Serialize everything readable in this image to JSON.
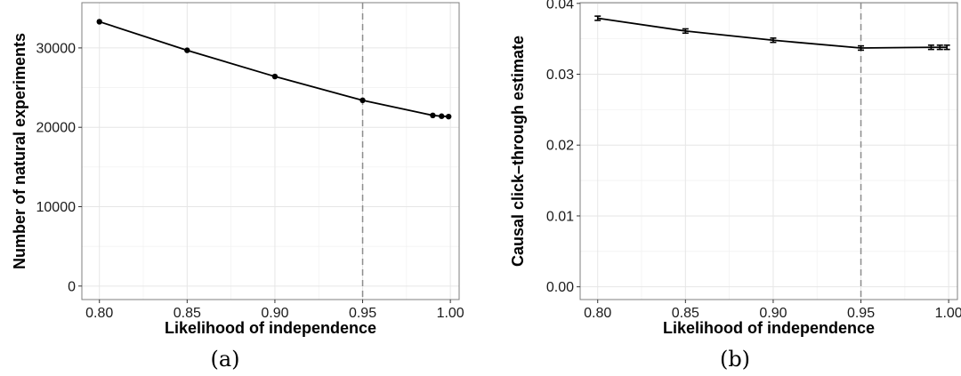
{
  "chart_data": [
    {
      "type": "line",
      "caption": "(a)",
      "xlabel": "Likelihood of independence",
      "ylabel": "Number of natural experiments",
      "xlim": [
        0.79,
        1.005
      ],
      "ylim": [
        -1700,
        35700
      ],
      "x_ticks": [
        0.8,
        0.85,
        0.9,
        0.95,
        1.0
      ],
      "x_tick_labels": [
        "0.80",
        "0.85",
        "0.90",
        "0.95",
        "1.00"
      ],
      "y_ticks": [
        0,
        10000,
        20000,
        30000
      ],
      "y_tick_labels": [
        "0",
        "10000",
        "20000",
        "30000"
      ],
      "grid": true,
      "reference_line_x": 0.95,
      "series": [
        {
          "x": [
            0.8,
            0.85,
            0.9,
            0.95,
            0.99,
            0.995,
            0.999
          ],
          "y": [
            33300,
            29700,
            26400,
            23400,
            21500,
            21400,
            21350
          ]
        }
      ]
    },
    {
      "type": "line",
      "caption": "(b)",
      "xlabel": "Likelihood of independence",
      "ylabel": "Causal click–through estimate",
      "xlim": [
        0.79,
        1.005
      ],
      "ylim": [
        -0.0018,
        0.0401
      ],
      "x_ticks": [
        0.8,
        0.85,
        0.9,
        0.95,
        1.0
      ],
      "x_tick_labels": [
        "0.80",
        "0.85",
        "0.90",
        "0.95",
        "1.00"
      ],
      "y_ticks": [
        0.0,
        0.01,
        0.02,
        0.03,
        0.04
      ],
      "y_tick_labels": [
        "0.00",
        "0.01",
        "0.02",
        "0.03",
        "0.04"
      ],
      "grid": true,
      "reference_line_x": 0.95,
      "error_bars": true,
      "series": [
        {
          "x": [
            0.8,
            0.85,
            0.9,
            0.95,
            0.99,
            0.995,
            0.999
          ],
          "y": [
            0.0379,
            0.0361,
            0.0348,
            0.0337,
            0.0338,
            0.0338,
            0.0338
          ],
          "err": [
            0.0003,
            0.0003,
            0.0003,
            0.0003,
            0.0003,
            0.0003,
            0.0003
          ]
        }
      ]
    }
  ]
}
